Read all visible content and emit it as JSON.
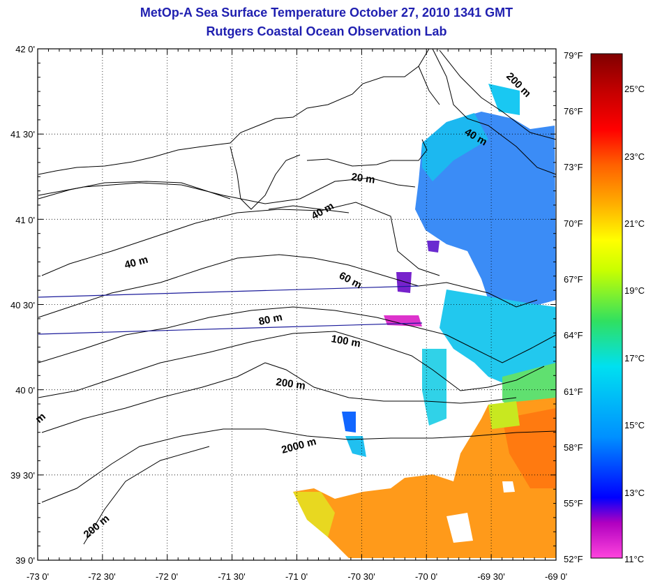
{
  "title": "MetOp-A Sea Surface Temperature October 27, 2010 1341 GMT",
  "subtitle": "Rutgers Coastal Ocean Observation Lab",
  "lat_labels": [
    "42 0'",
    "41 30'",
    "41 0'",
    "40 30'",
    "40 0'",
    "39 30'",
    "39 0'"
  ],
  "lon_labels": [
    "-73 0'",
    "-72 30'",
    "-72 0'",
    "-71 30'",
    "-71 0'",
    "-70 30'",
    "-70 0'",
    "-69 30'",
    "-69 0'"
  ],
  "fahrenheit_labels": [
    "79°F",
    "76°F",
    "73°F",
    "70°F",
    "67°F",
    "64°F",
    "61°F",
    "58°F",
    "55°F",
    "52°F"
  ],
  "celsius_labels": [
    "25°C",
    "23°C",
    "21°C",
    "19°C",
    "17°C",
    "15°C",
    "13°C",
    "11°C"
  ],
  "isobath_labels": [
    "20 m",
    "40 m",
    "40 m",
    "40 m",
    "60 m",
    "80 m",
    "100 m",
    "200 m",
    "2000 m",
    "200 m",
    "200 m",
    "m"
  ],
  "colorbar_stops": [
    "#ff44dd",
    "#b000c0",
    "#0000ff",
    "#0090ff",
    "#00e0f0",
    "#30e060",
    "#c8ff00",
    "#ffff00",
    "#ffb000",
    "#ff6000",
    "#ff0000",
    "#c00000",
    "#800000"
  ],
  "colors": {
    "title": "#1f1fb0",
    "grid": "#000000",
    "track": "#1a1a9a",
    "sst_cool": "#3399ff",
    "sst_warm": "#ff9a1a"
  }
}
